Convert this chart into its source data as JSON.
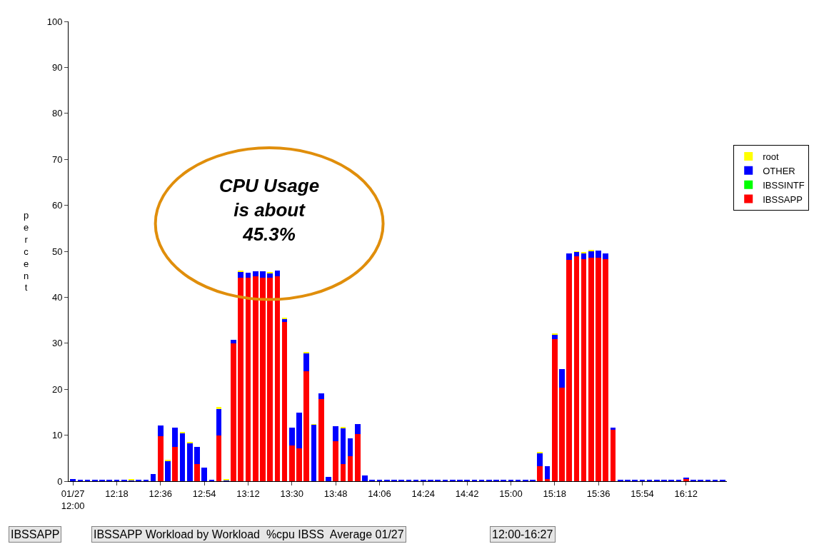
{
  "chart_data": {
    "type": "bar",
    "stacked": true,
    "ylabel": "percent",
    "categories": [
      "01/27\n12:00",
      null,
      null,
      null,
      null,
      null,
      "12:18",
      null,
      null,
      null,
      null,
      null,
      "12:36",
      null,
      null,
      null,
      null,
      null,
      "12:54",
      null,
      null,
      null,
      null,
      null,
      "13:12",
      null,
      null,
      null,
      null,
      null,
      "13:30",
      null,
      null,
      null,
      null,
      null,
      "13:48",
      null,
      null,
      null,
      null,
      null,
      "14:06",
      null,
      null,
      null,
      null,
      null,
      "14:24",
      null,
      null,
      null,
      null,
      null,
      "14:42",
      null,
      null,
      null,
      null,
      null,
      "15:00",
      null,
      null,
      null,
      null,
      null,
      "15:18",
      null,
      null,
      null,
      null,
      null,
      "15:36",
      null,
      null,
      null,
      null,
      null,
      "15:54",
      null,
      null,
      null,
      null,
      null,
      "16:12",
      null,
      null,
      null,
      null,
      null
    ],
    "series": [
      {
        "name": "IBSSAPP",
        "color": "#ff0000",
        "values": [
          0,
          0,
          0,
          0,
          0,
          0,
          0,
          0,
          0,
          0,
          0,
          0,
          9.8,
          0,
          7.5,
          0,
          0,
          3.7,
          0,
          0,
          10.0,
          0,
          30.0,
          44.3,
          44.3,
          44.6,
          44.3,
          44.3,
          44.6,
          34.7,
          7.8,
          7.2,
          23.9,
          0,
          17.9,
          0,
          8.7,
          3.7,
          5.5,
          10.3,
          0,
          0,
          0,
          0,
          0,
          0,
          0,
          0,
          0,
          0,
          0,
          0,
          0,
          0,
          0,
          0,
          0,
          0,
          0,
          0,
          0,
          0,
          0,
          0,
          3.2,
          0.5,
          30.9,
          20.3,
          48.1,
          48.9,
          48.3,
          48.6,
          48.6,
          48.3,
          11.3,
          0,
          0,
          0,
          0,
          0,
          0,
          0,
          0,
          0,
          0.5,
          0,
          0,
          0,
          0,
          0
        ]
      },
      {
        "name": "IBSSINTF",
        "color": "#00ff00",
        "values": [
          0,
          0,
          0,
          0,
          0,
          0,
          0,
          0,
          0,
          0,
          0,
          0,
          0,
          0,
          0,
          0,
          0,
          0,
          0,
          0,
          0,
          0,
          0,
          0,
          0,
          0,
          0,
          0,
          0,
          0,
          0,
          0,
          0,
          0,
          0,
          0,
          0,
          0,
          0,
          0,
          0,
          0,
          0,
          0,
          0,
          0,
          0,
          0,
          0,
          0,
          0,
          0,
          0,
          0,
          0,
          0,
          0,
          0,
          0,
          0,
          0,
          0,
          0,
          0,
          0,
          0,
          0,
          0,
          0,
          0,
          0,
          0,
          0,
          0,
          0,
          0,
          0,
          0,
          0,
          0,
          0,
          0,
          0,
          0,
          0,
          0,
          0,
          0,
          0,
          0
        ]
      },
      {
        "name": "OTHER",
        "color": "#0000ff",
        "values": [
          0.5,
          0.3,
          0.3,
          0.3,
          0.3,
          0.3,
          0.3,
          0.3,
          0.3,
          0.3,
          0.3,
          1.5,
          2.3,
          4.5,
          4.2,
          10.5,
          8.3,
          3.8,
          3.0,
          0.3,
          5.8,
          0.3,
          0.7,
          1.2,
          1.0,
          1.0,
          1.3,
          1.0,
          1.2,
          0.7,
          3.8,
          7.7,
          4.0,
          12.3,
          1.2,
          0.9,
          3.3,
          7.9,
          3.8,
          2.2,
          1.2,
          0.3,
          0.3,
          0.3,
          0.3,
          0.3,
          0.3,
          0.3,
          0.3,
          0.3,
          0.3,
          0.3,
          0.3,
          0.3,
          0.3,
          0.3,
          0.3,
          0.3,
          0.3,
          0.3,
          0.3,
          0.3,
          0.3,
          0.3,
          3.0,
          2.7,
          1.0,
          4.1,
          1.5,
          1.0,
          1.3,
          1.5,
          1.5,
          1.3,
          0.3,
          0.3,
          0.3,
          0.3,
          0.3,
          0.3,
          0.3,
          0.3,
          0.3,
          0.3,
          0.3,
          0.3,
          0.3,
          0.3,
          0.3,
          0.3
        ]
      },
      {
        "name": "root",
        "color": "#ffff00",
        "values": [
          0,
          0,
          0,
          0,
          0,
          0,
          0,
          0,
          0.2,
          0,
          0,
          0,
          0,
          0.2,
          0,
          0.2,
          0.2,
          0,
          0,
          0,
          0.3,
          0.2,
          0,
          0.2,
          0,
          0,
          0,
          0.2,
          0,
          0.2,
          0,
          0,
          0.2,
          0.1,
          0,
          0,
          0,
          0.2,
          0,
          0,
          0,
          0,
          0,
          0,
          0,
          0,
          0,
          0,
          0,
          0,
          0,
          0,
          0,
          0,
          0,
          0,
          0,
          0,
          0,
          0,
          0,
          0,
          0,
          0,
          0.2,
          0,
          0.2,
          0,
          0,
          0.1,
          0.2,
          0.2,
          0,
          0,
          0,
          0,
          0,
          0,
          0,
          0,
          0,
          0,
          0,
          0,
          0,
          0,
          0,
          0,
          0,
          0
        ]
      }
    ],
    "ylim": [
      0,
      100
    ],
    "yticks": [
      0,
      10,
      20,
      30,
      40,
      50,
      60,
      70,
      80,
      90,
      100
    ],
    "grid": false,
    "legend": "right",
    "annotations": [
      "CPU Usage\nis about\n45.3%",
      "IBSSAPP",
      "IBSSAPP Workload by Workload  %cpu IBSS  Average 01/27",
      "12:00-16:27"
    ]
  }
}
